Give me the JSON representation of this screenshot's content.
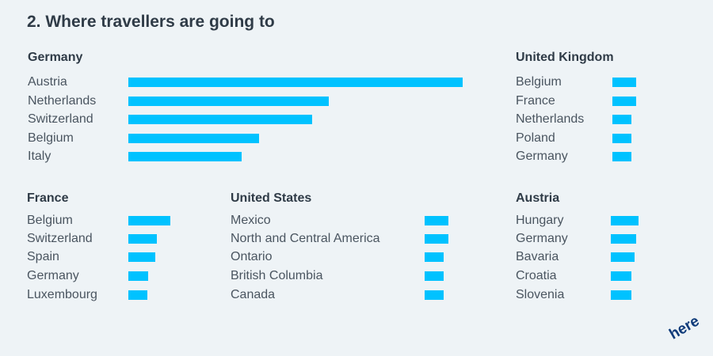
{
  "title": "2. Where travellers are going to",
  "colors": {
    "bar": "#00c2ff",
    "text": "#2f3b47",
    "background": "#eef3f6",
    "logo": "#0f3b7a"
  },
  "logo_text": "here",
  "chart_data": [
    {
      "type": "bar",
      "orientation": "horizontal",
      "title": "Germany",
      "categories": [
        "Austria",
        "Netherlands",
        "Switzerland",
        "Belgium",
        "Italy"
      ],
      "values": [
        100,
        60,
        55,
        39,
        34
      ]
    },
    {
      "type": "bar",
      "orientation": "horizontal",
      "title": "United Kingdom",
      "categories": [
        "Belgium",
        "France",
        "Netherlands",
        "Poland",
        "Germany"
      ],
      "values": [
        7,
        7,
        5.5,
        5.5,
        5.5
      ]
    },
    {
      "type": "bar",
      "orientation": "horizontal",
      "title": "France",
      "categories": [
        "Belgium",
        "Switzerland",
        "Spain",
        "Germany",
        "Luxembourg"
      ],
      "values": [
        12.5,
        8.5,
        8,
        6,
        5.7
      ]
    },
    {
      "type": "bar",
      "orientation": "horizontal",
      "title": "United States",
      "categories": [
        "Mexico",
        "North and Central America",
        "Ontario",
        "British Columbia",
        "Canada"
      ],
      "values": [
        7,
        7,
        5.5,
        5.5,
        5.5
      ]
    },
    {
      "type": "bar",
      "orientation": "horizontal",
      "title": "Austria",
      "categories": [
        "Hungary",
        "Germany",
        "Bavaria",
        "Croatia",
        "Slovenia"
      ],
      "values": [
        8.2,
        7.4,
        7,
        6.2,
        6.2
      ]
    }
  ]
}
